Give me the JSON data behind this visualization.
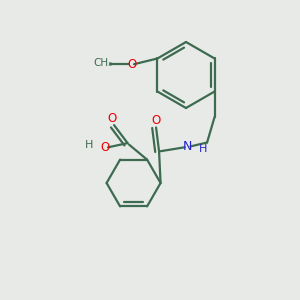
{
  "background_color": "#e8eae8",
  "bond_color": "#3d6b50",
  "oxygen_color": "#ee0000",
  "nitrogen_color": "#2222cc",
  "line_width": 1.6,
  "fig_size": [
    3.0,
    3.0
  ],
  "dpi": 100,
  "xlim": [
    0,
    10
  ],
  "ylim": [
    0,
    10
  ]
}
